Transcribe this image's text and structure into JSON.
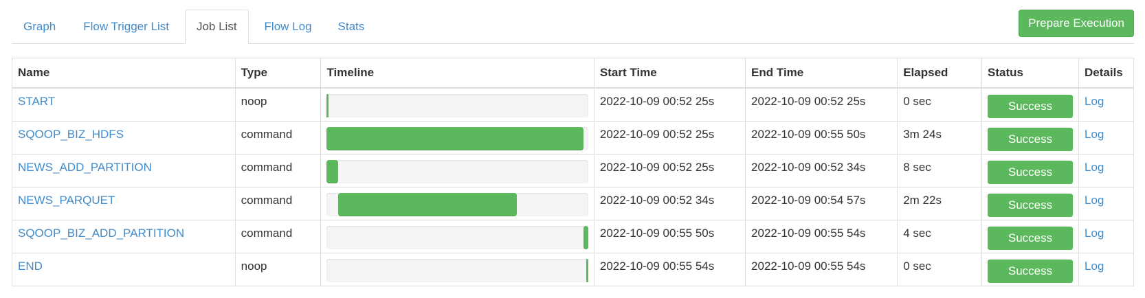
{
  "tabs": [
    {
      "label": "Graph"
    },
    {
      "label": "Flow Trigger List"
    },
    {
      "label": "Job List",
      "active": true
    },
    {
      "label": "Flow Log"
    },
    {
      "label": "Stats"
    }
  ],
  "prepare_label": "Prepare Execution",
  "accent": "#5cb85c",
  "headers": [
    "Name",
    "Type",
    "Timeline",
    "Start Time",
    "End Time",
    "Elapsed",
    "Status",
    "Details"
  ],
  "jobs": [
    {
      "name": "START",
      "type": "noop",
      "start": "2022-10-09 00:52 25s",
      "end": "2022-10-09 00:52 25s",
      "elapsed": "0 sec",
      "status": "Success",
      "details": "Log"
    },
    {
      "name": "SQOOP_BIZ_HDFS",
      "type": "command",
      "start": "2022-10-09 00:52 25s",
      "end": "2022-10-09 00:55 50s",
      "elapsed": "3m 24s",
      "status": "Success",
      "details": "Log"
    },
    {
      "name": "NEWS_ADD_PARTITION",
      "type": "command",
      "start": "2022-10-09 00:52 25s",
      "end": "2022-10-09 00:52 34s",
      "elapsed": "8 sec",
      "status": "Success",
      "details": "Log"
    },
    {
      "name": "NEWS_PARQUET",
      "type": "command",
      "start": "2022-10-09 00:52 34s",
      "end": "2022-10-09 00:54 57s",
      "elapsed": "2m 22s",
      "status": "Success",
      "details": "Log"
    },
    {
      "name": "SQOOP_BIZ_ADD_PARTITION",
      "type": "command",
      "start": "2022-10-09 00:55 50s",
      "end": "2022-10-09 00:55 54s",
      "elapsed": "4 sec",
      "status": "Success",
      "details": "Log"
    },
    {
      "name": "END",
      "type": "noop",
      "start": "2022-10-09 00:55 54s",
      "end": "2022-10-09 00:55 54s",
      "elapsed": "0 sec",
      "status": "Success",
      "details": "Log"
    }
  ]
}
